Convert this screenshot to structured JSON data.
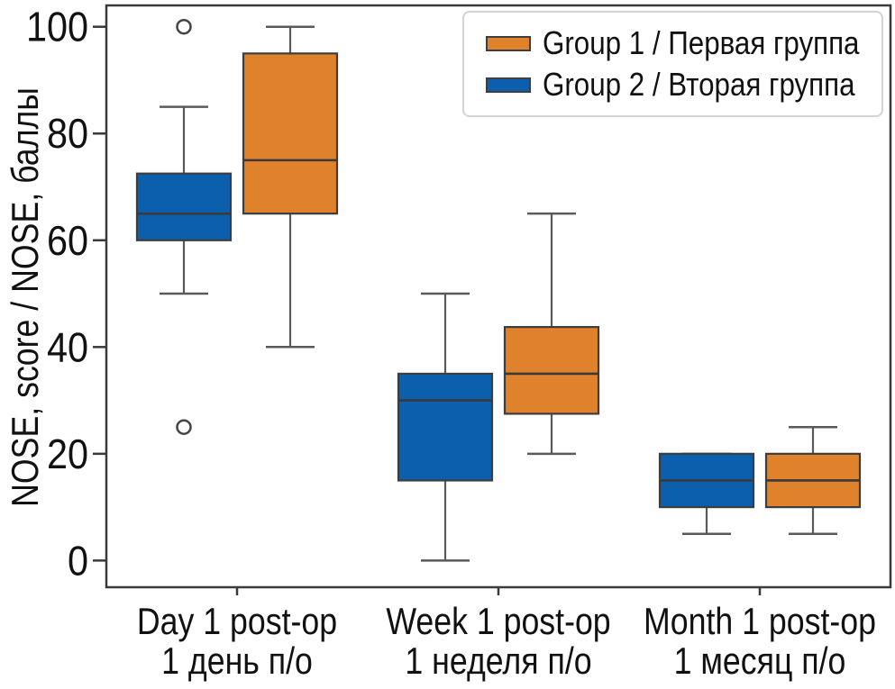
{
  "chart_data": {
    "type": "boxplot",
    "title": "",
    "ylabel": "NOSE, score / NOSE, баллы",
    "xlabel": "",
    "ylim": [
      -5,
      104
    ],
    "yticks": [
      0,
      20,
      40,
      60,
      80,
      100
    ],
    "grid": false,
    "legend_position": "upper right",
    "categories": [
      {
        "id": "day1",
        "en": "Day 1 post-op",
        "ru": "1 день п/о"
      },
      {
        "id": "week1",
        "en": "Week 1 post-op",
        "ru": "1 неделя п/о"
      },
      {
        "id": "month1",
        "en": "Month 1 post-op",
        "ru": "1 месяц п/о"
      }
    ],
    "legend": [
      {
        "label": "Group 1 / Первая группа",
        "color": "#e0812b"
      },
      {
        "label": "Group 2 / Вторая группа",
        "color": "#0b5fad"
      }
    ],
    "series": [
      {
        "id": "group2",
        "name": "Group 2 / Вторая группа",
        "color": "#0b5fad",
        "position": "left",
        "boxes": [
          {
            "category": "day1",
            "whisker_low": 50,
            "q1": 60,
            "median": 65,
            "q3": 72.5,
            "whisker_high": 85,
            "outliers": [
              25,
              100
            ]
          },
          {
            "category": "week1",
            "whisker_low": 0,
            "q1": 15,
            "median": 30,
            "q3": 35,
            "whisker_high": 50,
            "outliers": []
          },
          {
            "category": "month1",
            "whisker_low": 5,
            "q1": 10,
            "median": 15,
            "q3": 20,
            "whisker_high": 20,
            "outliers": []
          }
        ]
      },
      {
        "id": "group1",
        "name": "Group 1 / Первая группа",
        "color": "#e0812b",
        "position": "right",
        "boxes": [
          {
            "category": "day1",
            "whisker_low": 40,
            "q1": 65,
            "median": 75,
            "q3": 95,
            "whisker_high": 100,
            "outliers": []
          },
          {
            "category": "week1",
            "whisker_low": 20,
            "q1": 27.5,
            "median": 35,
            "q3": 43.75,
            "whisker_high": 65,
            "outliers": []
          },
          {
            "category": "month1",
            "whisker_low": 5,
            "q1": 10,
            "median": 15,
            "q3": 20,
            "whisker_high": 25,
            "outliers": []
          }
        ]
      }
    ],
    "colors": {
      "axis": "#3a3a3a",
      "box_edge": "#3d3d3d",
      "median": "#3a3a3a",
      "whisker": "#5a5a5a",
      "outlier_edge": "#454545",
      "text": "#111111",
      "legend_border": "#d4d4d4",
      "background": "#ffffff"
    }
  }
}
